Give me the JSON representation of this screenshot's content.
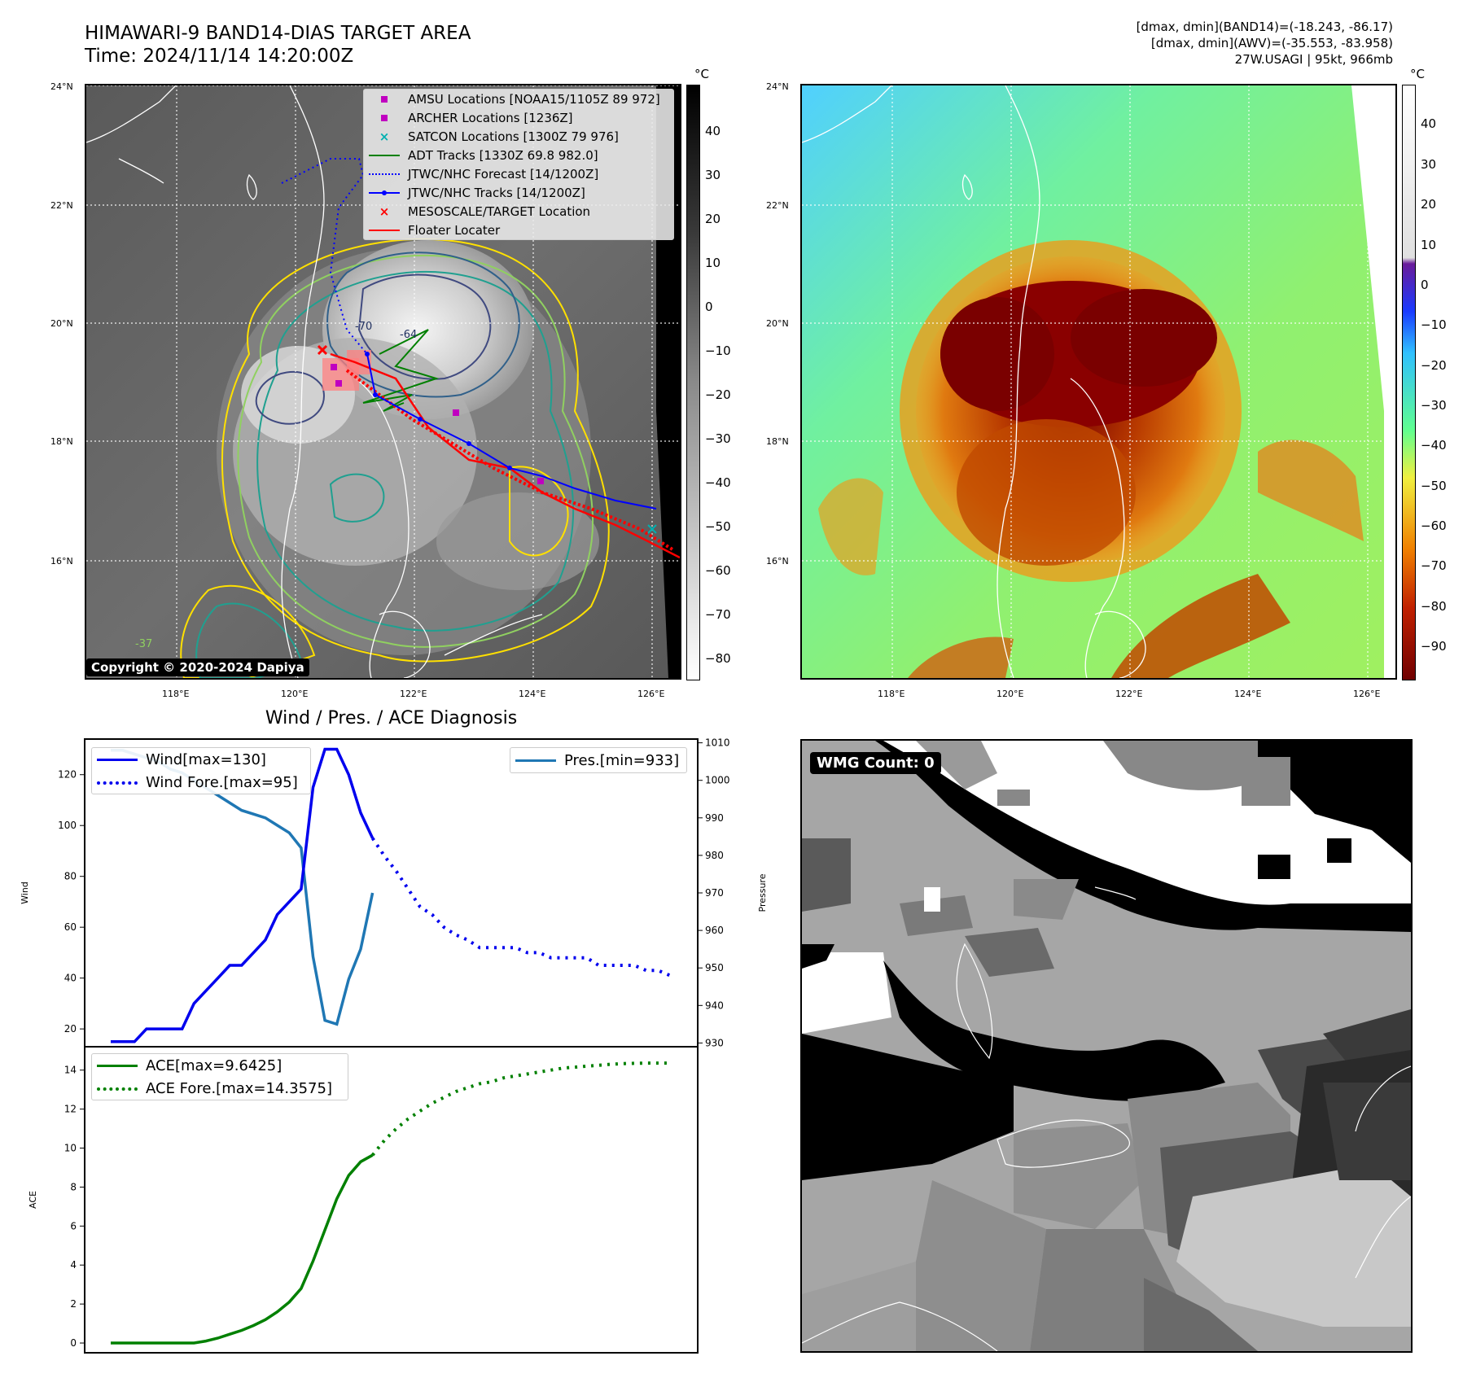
{
  "header": {
    "title_line1": "HIMAWARI-9 BAND14-DIAS TARGET AREA",
    "title_line2": "Time: 2024/11/14 14:20:00Z",
    "info_line1": "[dmax, dmin](BAND14)=(-18.243, -86.17)",
    "info_line2": "[dmax, dmin](AWV)=(-35.553, -83.958)",
    "info_line3": "27W.USAGI | 95kt, 966mb"
  },
  "map": {
    "lat_labels": [
      "24°N",
      "22°N",
      "20°N",
      "18°N",
      "16°N"
    ],
    "lon_labels": [
      "118°E",
      "120°E",
      "122°E",
      "124°E",
      "126°E"
    ],
    "copyright": "Copyright © 2020-2024 Dapiya",
    "contour_labels": [
      "-70",
      "-64",
      "-37"
    ]
  },
  "legend": {
    "items": [
      {
        "label": "AMSU Locations [NOAA15/1105Z 89 972]",
        "sym": "square",
        "color": "#c000c0"
      },
      {
        "label": "ARCHER Locations [1236Z]",
        "sym": "square",
        "color": "#c000c0"
      },
      {
        "label": "SATCON Locations [1300Z 79 976]",
        "sym": "x",
        "color": "#00b0b0"
      },
      {
        "label": "ADT Tracks [1330Z 69.8 982.0]",
        "sym": "line",
        "color": "#008000"
      },
      {
        "label": "JTWC/NHC Forecast [14/1200Z]",
        "sym": "dotted",
        "color": "#0000ff"
      },
      {
        "label": "JTWC/NHC Tracks [14/1200Z]",
        "sym": "linedot",
        "color": "#0000ff"
      },
      {
        "label": "MESOSCALE/TARGET Location",
        "sym": "x",
        "color": "#ff0000"
      },
      {
        "label": "Floater Locater",
        "sym": "line",
        "color": "#ff0000"
      }
    ]
  },
  "colorbar_left": {
    "unit": "°C",
    "ticks": [
      "40",
      "30",
      "20",
      "10",
      "0",
      "−10",
      "−20",
      "−30",
      "−40",
      "−50",
      "−60",
      "−70",
      "−80"
    ]
  },
  "colorbar_right": {
    "unit": "°C",
    "ticks": [
      "40",
      "30",
      "20",
      "10",
      "0",
      "−10",
      "−20",
      "−30",
      "−40",
      "−50",
      "−60",
      "−70",
      "−80",
      "−90"
    ]
  },
  "colors": {
    "wind": "#0000ee",
    "pressure": "#1f77b4",
    "ace": "#008000",
    "track_red": "#ff0000"
  },
  "chart_data": [
    {
      "type": "line",
      "title": "Wind / Pres. / ACE Diagnosis",
      "ylabel": "Wind",
      "ylim": [
        13,
        134
      ],
      "yticks": [
        20,
        40,
        60,
        80,
        100,
        120
      ],
      "series": [
        {
          "name": "Wind[max=130]",
          "style": "solid",
          "x": [
            0,
            1,
            2,
            3,
            4,
            5,
            6,
            7,
            8,
            9,
            10,
            11,
            12,
            13,
            14,
            15,
            16,
            17,
            18,
            19,
            20,
            21,
            22
          ],
          "values": [
            15,
            15,
            15,
            20,
            20,
            20,
            20,
            30,
            35,
            40,
            45,
            45,
            50,
            55,
            65,
            70,
            75,
            115,
            130,
            130,
            120,
            105,
            95
          ]
        },
        {
          "name": "Wind Fore.[max=95]",
          "style": "dotted",
          "x": [
            22,
            23,
            24,
            25,
            26,
            27,
            28,
            29,
            30,
            31,
            32,
            33,
            34,
            35,
            36,
            37,
            38,
            39,
            40,
            41,
            42,
            43,
            44,
            45,
            46,
            47
          ],
          "values": [
            95,
            88,
            82,
            75,
            68,
            65,
            60,
            57,
            55,
            52,
            52,
            52,
            52,
            50,
            50,
            48,
            48,
            48,
            48,
            45,
            45,
            45,
            45,
            43,
            43,
            41
          ]
        }
      ],
      "y2label": "Pressure",
      "y2lim": [
        929,
        1011
      ],
      "y2ticks": [
        930,
        940,
        950,
        960,
        970,
        980,
        990,
        1000,
        1010
      ],
      "series2": [
        {
          "name": "Pres.[min=933]",
          "style": "solid",
          "x": [
            0,
            1,
            2,
            3,
            4,
            5,
            6,
            7,
            8,
            9,
            10,
            11,
            12,
            13,
            14,
            15,
            16,
            17,
            18,
            19,
            20,
            21,
            22
          ],
          "values": [
            1008,
            1008,
            1007,
            1006,
            1005,
            1003,
            1002,
            1000,
            998,
            996,
            994,
            992,
            991,
            990,
            988,
            986,
            982,
            953,
            936,
            935,
            947,
            955,
            970
          ]
        }
      ]
    },
    {
      "type": "line",
      "ylabel": "ACE",
      "ylim": [
        -0.5,
        15.2
      ],
      "yticks": [
        0,
        2,
        4,
        6,
        8,
        10,
        12,
        14
      ],
      "series": [
        {
          "name": "ACE[max=9.6425]",
          "style": "solid",
          "x": [
            0,
            1,
            2,
            3,
            4,
            5,
            6,
            7,
            8,
            9,
            10,
            11,
            12,
            13,
            14,
            15,
            16,
            17,
            18,
            19,
            20,
            21,
            22
          ],
          "values": [
            0,
            0,
            0,
            0,
            0,
            0,
            0,
            0,
            0.1,
            0.25,
            0.45,
            0.65,
            0.9,
            1.2,
            1.6,
            2.1,
            2.8,
            4.2,
            5.8,
            7.4,
            8.6,
            9.3,
            9.64
          ]
        },
        {
          "name": "ACE Fore.[max=14.3575]",
          "style": "dotted",
          "x": [
            22,
            23,
            24,
            25,
            26,
            27,
            28,
            29,
            30,
            31,
            32,
            33,
            34,
            35,
            36,
            37,
            38,
            39,
            40,
            41,
            42,
            43,
            44,
            45,
            46,
            47
          ],
          "values": [
            9.64,
            10.4,
            11.0,
            11.5,
            11.9,
            12.3,
            12.6,
            12.9,
            13.1,
            13.3,
            13.4,
            13.6,
            13.7,
            13.8,
            13.9,
            14.0,
            14.1,
            14.15,
            14.2,
            14.25,
            14.3,
            14.33,
            14.35,
            14.36,
            14.36,
            14.36
          ]
        }
      ]
    }
  ],
  "wmg": {
    "label": "WMG Count: 0"
  }
}
